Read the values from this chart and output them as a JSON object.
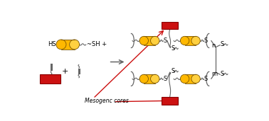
{
  "bg_color": "#ffffff",
  "cylinder_color": "#FFB800",
  "cylinder_edge": "#7a5500",
  "cylinder_highlight": "#FFD040",
  "red_color": "#CC1111",
  "red_edge": "#880000",
  "line_color": "#666666",
  "text_color": "#000000",
  "arrow_color": "#CC1111",
  "label_mesogenc": "Mesogenc cores",
  "label_n": "n",
  "label_m": "m"
}
